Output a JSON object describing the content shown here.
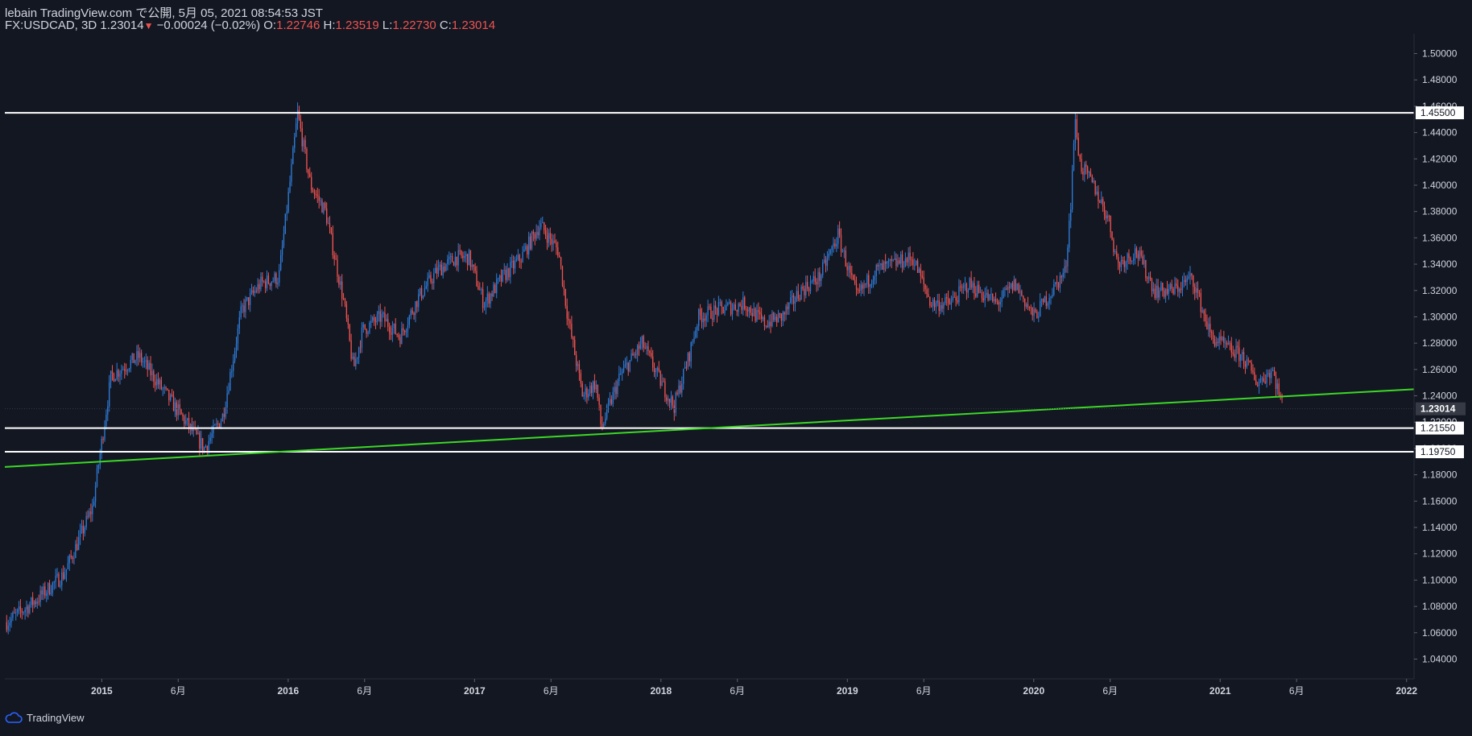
{
  "header": {
    "published": "lebain TradingView.com で公開, 5月 05, 2021 08:54:53 JST",
    "symbol": "FX:USDCAD, 3D",
    "last": "1.23014",
    "change": "−0.00024 (−0.02%)",
    "o_label": "O:",
    "o": "1.22746",
    "h_label": "H:",
    "h": "1.23519",
    "l_label": "L:",
    "l": "1.22730",
    "c_label": "C:",
    "c": "1.23014"
  },
  "footer": {
    "brand": "TradingView"
  },
  "colors": {
    "background": "#131722",
    "up": "#2e7bd6",
    "down": "#ef5350",
    "trendline": "#3cd826",
    "level": "#ffffff",
    "text": "#d1d4dc"
  },
  "chart_data": {
    "type": "candlestick",
    "symbol": "FX:USDCAD",
    "timeframe": "3D",
    "ylim": [
      1.025,
      1.515
    ],
    "y_ticks": [
      "1.50000",
      "1.48000",
      "1.46000",
      "1.44000",
      "1.42000",
      "1.40000",
      "1.38000",
      "1.36000",
      "1.34000",
      "1.32000",
      "1.30000",
      "1.28000",
      "1.26000",
      "1.24000",
      "1.22000",
      "1.20000",
      "1.18000",
      "1.16000",
      "1.14000",
      "1.12000",
      "1.10000",
      "1.08000",
      "1.06000",
      "1.04000"
    ],
    "x_ticks": [
      {
        "t": 2015.0,
        "label": "2015"
      },
      {
        "t": 2015.41,
        "label": "6月"
      },
      {
        "t": 2016.0,
        "label": "2016"
      },
      {
        "t": 2016.41,
        "label": "6月"
      },
      {
        "t": 2017.0,
        "label": "2017"
      },
      {
        "t": 2017.41,
        "label": "6月"
      },
      {
        "t": 2018.0,
        "label": "2018"
      },
      {
        "t": 2018.41,
        "label": "6月"
      },
      {
        "t": 2019.0,
        "label": "2019"
      },
      {
        "t": 2019.41,
        "label": "6月"
      },
      {
        "t": 2020.0,
        "label": "2020"
      },
      {
        "t": 2020.41,
        "label": "6月"
      },
      {
        "t": 2021.0,
        "label": "2021"
      },
      {
        "t": 2021.41,
        "label": "6月"
      },
      {
        "t": 2022.0,
        "label": "2022"
      }
    ],
    "xlim": [
      2014.48,
      2022.04
    ],
    "price_path": [
      [
        2014.49,
        1.068
      ],
      [
        2014.65,
        1.085
      ],
      [
        2014.8,
        1.105
      ],
      [
        2014.95,
        1.155
      ],
      [
        2015.05,
        1.255
      ],
      [
        2015.2,
        1.27
      ],
      [
        2015.35,
        1.24
      ],
      [
        2015.45,
        1.22
      ],
      [
        2015.55,
        1.2
      ],
      [
        2015.65,
        1.225
      ],
      [
        2015.75,
        1.305
      ],
      [
        2015.85,
        1.325
      ],
      [
        2015.95,
        1.33
      ],
      [
        2016.02,
        1.415
      ],
      [
        2016.05,
        1.455
      ],
      [
        2016.12,
        1.4
      ],
      [
        2016.2,
        1.38
      ],
      [
        2016.3,
        1.31
      ],
      [
        2016.35,
        1.26
      ],
      [
        2016.4,
        1.29
      ],
      [
        2016.5,
        1.3
      ],
      [
        2016.6,
        1.285
      ],
      [
        2016.7,
        1.315
      ],
      [
        2016.8,
        1.335
      ],
      [
        2016.9,
        1.345
      ],
      [
        2016.97,
        1.345
      ],
      [
        2017.05,
        1.31
      ],
      [
        2017.15,
        1.33
      ],
      [
        2017.25,
        1.345
      ],
      [
        2017.35,
        1.37
      ],
      [
        2017.45,
        1.35
      ],
      [
        2017.5,
        1.3
      ],
      [
        2017.58,
        1.24
      ],
      [
        2017.65,
        1.25
      ],
      [
        2017.68,
        1.215
      ],
      [
        2017.78,
        1.255
      ],
      [
        2017.9,
        1.28
      ],
      [
        2018.0,
        1.25
      ],
      [
        2018.07,
        1.232
      ],
      [
        2018.15,
        1.27
      ],
      [
        2018.2,
        1.3
      ],
      [
        2018.3,
        1.305
      ],
      [
        2018.45,
        1.31
      ],
      [
        2018.55,
        1.295
      ],
      [
        2018.65,
        1.3
      ],
      [
        2018.75,
        1.32
      ],
      [
        2018.85,
        1.33
      ],
      [
        2018.95,
        1.362
      ],
      [
        2019.05,
        1.315
      ],
      [
        2019.15,
        1.335
      ],
      [
        2019.25,
        1.34
      ],
      [
        2019.35,
        1.345
      ],
      [
        2019.45,
        1.31
      ],
      [
        2019.55,
        1.31
      ],
      [
        2019.65,
        1.325
      ],
      [
        2019.8,
        1.31
      ],
      [
        2019.9,
        1.325
      ],
      [
        2020.0,
        1.3
      ],
      [
        2020.1,
        1.32
      ],
      [
        2020.17,
        1.335
      ],
      [
        2020.2,
        1.39
      ],
      [
        2020.22,
        1.45
      ],
      [
        2020.25,
        1.415
      ],
      [
        2020.32,
        1.4
      ],
      [
        2020.4,
        1.375
      ],
      [
        2020.45,
        1.34
      ],
      [
        2020.55,
        1.35
      ],
      [
        2020.65,
        1.32
      ],
      [
        2020.75,
        1.32
      ],
      [
        2020.85,
        1.33
      ],
      [
        2020.95,
        1.285
      ],
      [
        2021.05,
        1.275
      ],
      [
        2021.12,
        1.27
      ],
      [
        2021.2,
        1.25
      ],
      [
        2021.28,
        1.26
      ],
      [
        2021.34,
        1.23
      ]
    ],
    "horizontal_levels": [
      {
        "value": 1.455,
        "label": "1.45500"
      },
      {
        "value": 1.2155,
        "label": "1.21550"
      },
      {
        "value": 1.1975,
        "label": "1.19750"
      }
    ],
    "trendline": {
      "from": [
        2014.48,
        1.186
      ],
      "to": [
        2022.04,
        1.245
      ]
    },
    "current_price": {
      "value": 1.23014,
      "label": "1.23014"
    },
    "up_color": "#2e7bd6",
    "down_color": "#ef5350",
    "trendline_color": "#3cd826",
    "level_color": "#ffffff"
  }
}
